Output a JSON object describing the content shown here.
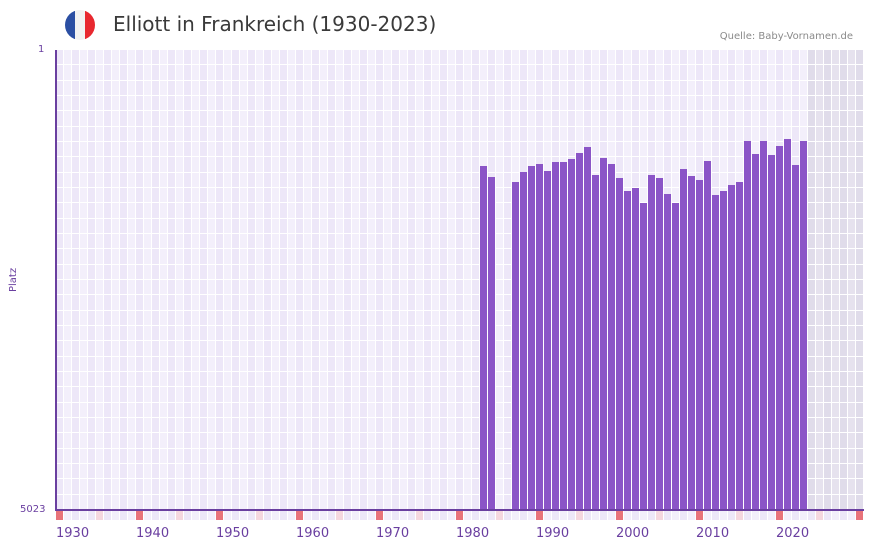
{
  "header": {
    "title": "Elliott in Frankreich (1930-2023)",
    "source": "Quelle: Baby-Vornamen.de",
    "flag_colors": [
      "#2b4fa3",
      "#f2f2f2",
      "#e8282f"
    ]
  },
  "colors": {
    "bar": "#8b55c7",
    "axis": "#6a3fa0",
    "cell_a": "#f3effb",
    "cell_b": "#ede7f8",
    "future_a": "#e6e2ee",
    "future_b": "#e0dcea",
    "tick_decade": "#e8737a",
    "tick_half": "#f5d7df",
    "tick_plain_a": "#f3effb",
    "tick_plain_b": "#ede7f8"
  },
  "chart_data": {
    "type": "bar",
    "title": "Elliott in Frankreich (1930-2023)",
    "xlabel": "",
    "ylabel": "Platz",
    "y_axis_inverted": true,
    "ylim": [
      5023,
      1
    ],
    "ytick_labels": [
      "1",
      "5023"
    ],
    "xlim": [
      1930,
      2030
    ],
    "xtick_labels": [
      "1930",
      "1940",
      "1950",
      "1960",
      "1970",
      "1980",
      "1990",
      "2000",
      "2010",
      "2020"
    ],
    "grid": true,
    "shaded_future_from": 2024,
    "categories": [
      1983,
      1984,
      1987,
      1988,
      1989,
      1990,
      1991,
      1992,
      1993,
      1994,
      1995,
      1996,
      1997,
      1998,
      1999,
      2000,
      2001,
      2002,
      2003,
      2004,
      2005,
      2006,
      2007,
      2008,
      2009,
      2010,
      2011,
      2012,
      2013,
      2014,
      2015,
      2016,
      2017,
      2018,
      2019,
      2020,
      2021,
      2022,
      2023
    ],
    "values": [
      1268,
      1388,
      1443,
      1334,
      1268,
      1246,
      1323,
      1224,
      1224,
      1191,
      1126,
      1060,
      1366,
      1180,
      1246,
      1399,
      1541,
      1508,
      1672,
      1366,
      1399,
      1574,
      1672,
      1301,
      1377,
      1421,
      1213,
      1585,
      1541,
      1475,
      1443,
      995,
      1137,
      995,
      1148,
      1049,
      973,
      1257,
      995
    ]
  }
}
